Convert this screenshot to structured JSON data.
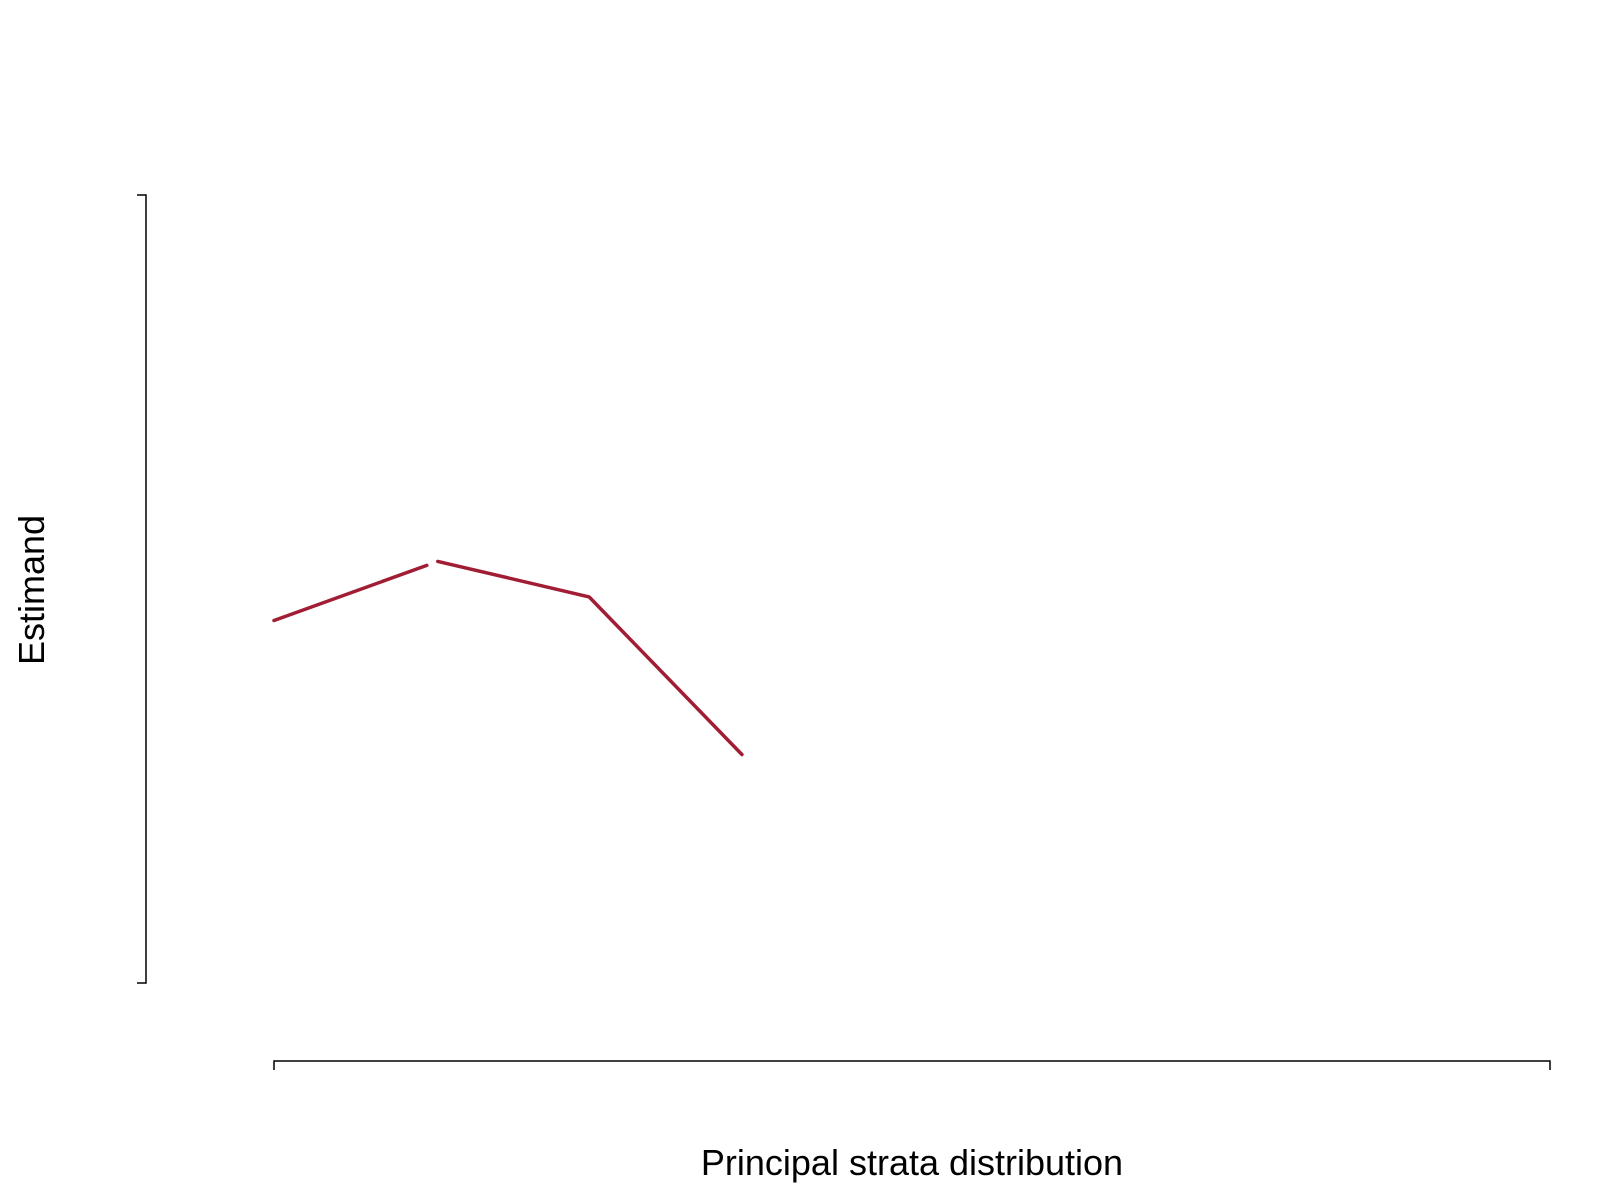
{
  "chart_data": {
    "type": "line",
    "title": "",
    "xlabel": "Principal strata distribution",
    "ylabel": "Estimand",
    "x": [
      1,
      2,
      3,
      4
    ],
    "xlim": [
      1,
      9.1
    ],
    "ylim": [
      0,
      1
    ],
    "series": [
      {
        "name": "",
        "color": "#A11D33",
        "segments": [
          {
            "x": [
              1,
              1.97
            ],
            "y": [
              0.46,
              0.53
            ]
          },
          {
            "x": [
              2.04,
              3,
              3.97
            ],
            "y": [
              0.535,
              0.49,
              0.29
            ]
          }
        ]
      }
    ],
    "grid": false,
    "legend": "none"
  }
}
